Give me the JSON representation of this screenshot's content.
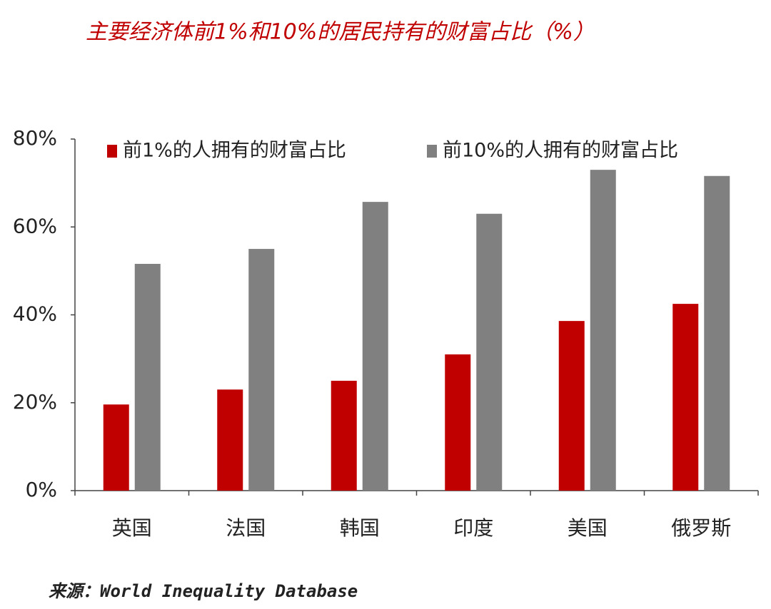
{
  "chart_data": {
    "type": "bar",
    "title": "主要经济体前1%和10%的居民持有的财富占比（%）",
    "categories": [
      "英国",
      "法国",
      "韩国",
      "印度",
      "美国",
      "俄罗斯"
    ],
    "series": [
      {
        "name": "前1%的人拥有的财富占比",
        "color": "#c00000",
        "values": [
          19.6,
          23.0,
          25.0,
          31.0,
          38.6,
          42.5
        ]
      },
      {
        "name": "前10%的人拥有的财富占比",
        "color": "#808080",
        "values": [
          51.6,
          55.0,
          65.7,
          63.0,
          73.0,
          71.6
        ]
      }
    ],
    "ylim": [
      0,
      80
    ],
    "yticks": [
      {
        "value": 0,
        "label": "0%"
      },
      {
        "value": 20,
        "label": "20%"
      },
      {
        "value": 40,
        "label": "40%"
      },
      {
        "value": 60,
        "label": "60%"
      },
      {
        "value": 80,
        "label": "80%"
      }
    ],
    "legend": "top",
    "source": "来源：World Inequality Database"
  }
}
